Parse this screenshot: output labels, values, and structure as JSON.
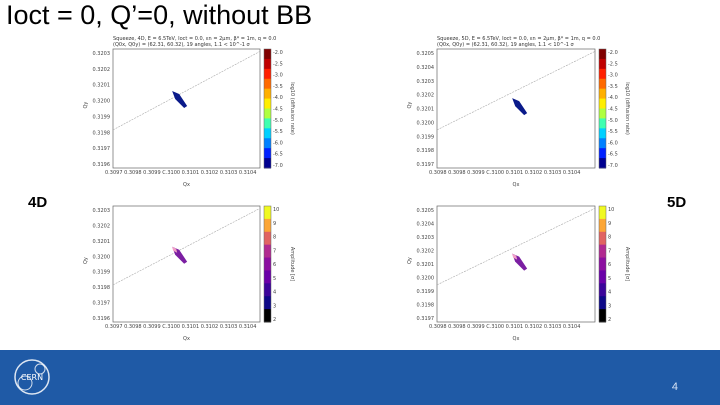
{
  "slide": {
    "title": "Ioct = 0, Q’=0, without BB",
    "label_left": "4D",
    "label_right": "5D",
    "page_number": "4"
  },
  "panels": [
    {
      "id": "top-left",
      "header_line1": "Squeeze, 4D, E = 6.5TeV, Ioct = 0.0, εn = 2μm, β* = 1m, q = 0.0",
      "header_line2": "(Q0x, Q0y) = (62.31, 60.32), 19 angles, 1.1 < 10^-1 σ",
      "xlabel": "Qx",
      "ylabel": "Qy",
      "yticks": [
        "0.3203",
        "0.3202",
        "0.3201",
        "0.3200",
        "0.3199",
        "0.3198",
        "0.3197",
        "0.3196"
      ],
      "xticks": "0.3097 0.3098 0.3099 C.3100 0.3101 0.3102 0.3103 0.3104",
      "cbar_label": "log10 (diffusion rate)",
      "cbar_ticks": [
        "-2.0",
        "-2.5",
        "-3.0",
        "-3.5",
        "-4.0",
        "-4.5",
        "-5.0",
        "-5.5",
        "-6.0",
        "-6.5",
        "-7.0"
      ],
      "cbar_type": "jet"
    },
    {
      "id": "top-right",
      "header_line1": "Squeeze, 5D, E = 6.5TeV, Ioct = 0.0, εn = 2μm, β* = 1m, q = 0.0",
      "header_line2": "(Q0x, Q0y) = (62.31, 60.32), 19 angles, 1.1 < 10^-1 σ",
      "xlabel": "Qx",
      "ylabel": "Qy",
      "yticks": [
        "0.3205",
        "0.3204",
        "0.3203",
        "0.3202",
        "0.3201",
        "0.3200",
        "0.3199",
        "0.3198",
        "0.3197"
      ],
      "xticks": "0.3098 0.3098 0.3099 C.3100 0.3101 0.3102 0.3103 0.3104",
      "cbar_label": "log10 (diffusion rate)",
      "cbar_ticks": [
        "-2.0",
        "-2.5",
        "-3.0",
        "-3.5",
        "-4.0",
        "-4.5",
        "-5.0",
        "-5.5",
        "-6.0",
        "-6.5",
        "-7.0"
      ],
      "cbar_type": "jet"
    },
    {
      "id": "bottom-left",
      "header_line1": "",
      "header_line2": "",
      "xlabel": "Qx",
      "ylabel": "Qy",
      "yticks": [
        "0.3203",
        "0.3202",
        "0.3201",
        "0.3200",
        "0.3199",
        "0.3198",
        "0.3197",
        "0.3196"
      ],
      "xticks": "0.3097 0.3098 0.3099 C.3100 0.3101 0.3102 0.3103 0.3104",
      "cbar_label": "Amplitude [σ]",
      "cbar_ticks": [
        "10",
        "9",
        "8",
        "7",
        "6",
        "5",
        "4",
        "3",
        "2"
      ],
      "cbar_type": "plasma"
    },
    {
      "id": "bottom-right",
      "header_line1": "",
      "header_line2": "",
      "xlabel": "Qx",
      "ylabel": "Qy",
      "yticks": [
        "0.3205",
        "0.3204",
        "0.3203",
        "0.3202",
        "0.3201",
        "0.3200",
        "0.3199",
        "0.3198",
        "0.3197"
      ],
      "xticks": "0.3098 0.3098 0.3099 C.3100 0.3101 0.3102 0.3103 0.3104",
      "cbar_label": "Amplitude [σ]",
      "cbar_ticks": [
        "10",
        "9",
        "8",
        "7",
        "6",
        "5",
        "4",
        "3",
        "2"
      ],
      "cbar_type": "plasma"
    }
  ],
  "footer": {
    "logo_text": "CERN",
    "color": "#1f5aa6"
  }
}
